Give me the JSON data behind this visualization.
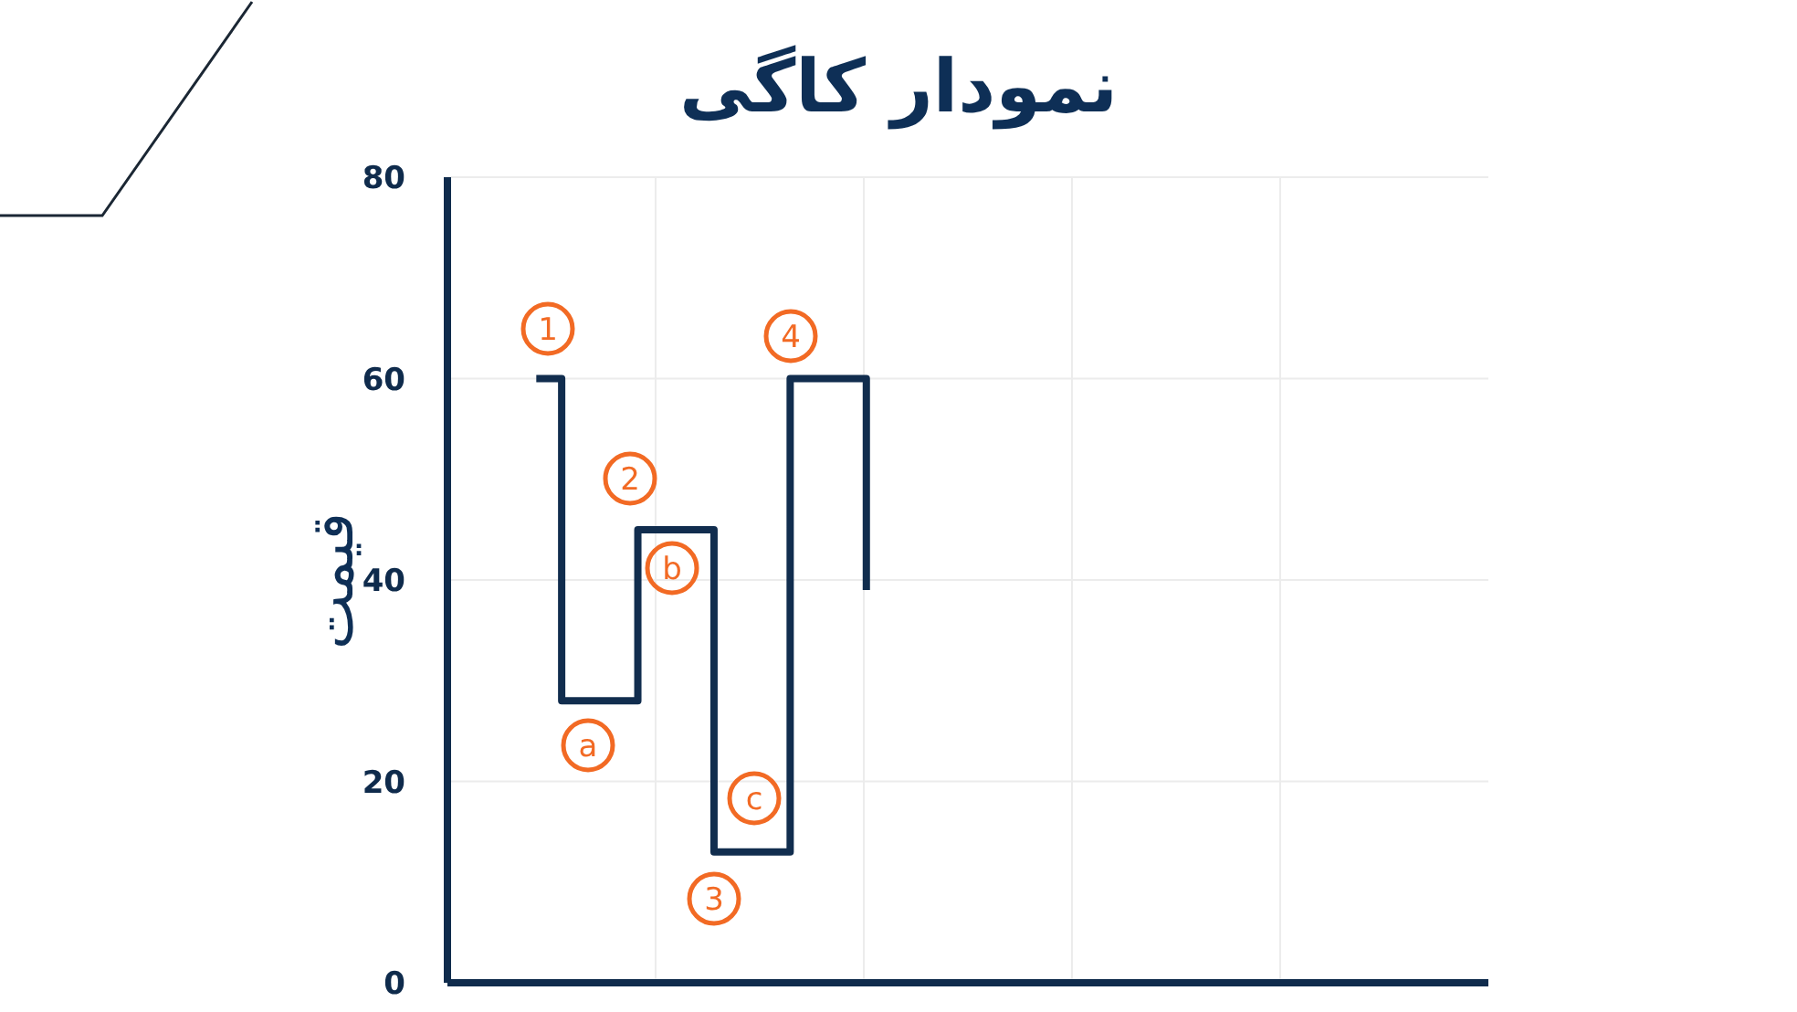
{
  "chart_data": {
    "type": "step",
    "title": "نمودار کاگی",
    "ylabel": "قیمت",
    "categories": [
      null,
      null,
      null,
      null,
      null,
      null,
      null,
      null,
      null,
      null,
      null,
      null,
      null,
      null,
      null,
      null,
      null,
      null,
      null,
      null,
      null,
      null,
      null,
      null,
      null,
      null,
      null,
      null,
      null,
      null,
      null,
      null,
      null,
      null,
      null,
      null,
      null,
      null,
      null,
      null,
      null
    ],
    "values": [
      null,
      null,
      null,
      60,
      28,
      28,
      28,
      45,
      45,
      45,
      13,
      13,
      13,
      60,
      60,
      60,
      39,
      null,
      null,
      null,
      null,
      null,
      null,
      null,
      null,
      null,
      null,
      null,
      null,
      null,
      null,
      null,
      null,
      null,
      null,
      null,
      null,
      null,
      null,
      null,
      null
    ],
    "color": "#112d4e",
    "ylim": [
      0,
      80
    ],
    "yticks": [
      0,
      20,
      40,
      60,
      80
    ],
    "grid": true,
    "marker": "none",
    "line_style": "solid",
    "tick_labels": "y",
    "annotations": [
      "1",
      "a",
      "2",
      "b",
      "3",
      "c",
      "4"
    ]
  }
}
